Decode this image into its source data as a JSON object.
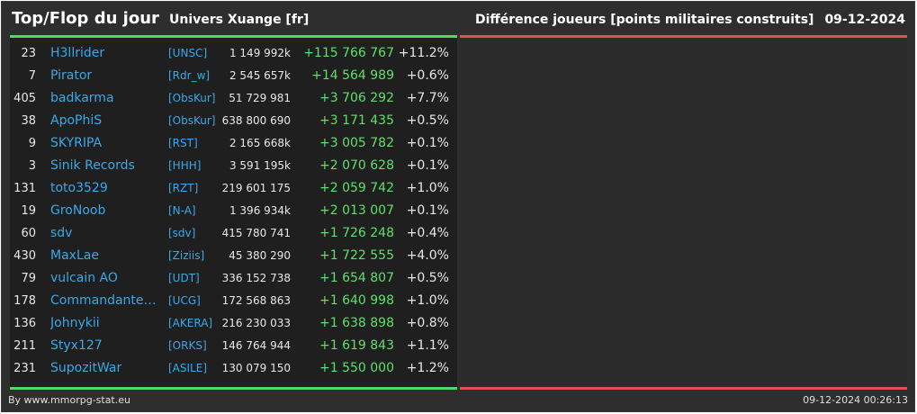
{
  "header": {
    "title": "Top/Flop du jour",
    "universe": "Univers Xuange [fr]",
    "metric": "Différence joueurs [points militaires construits]",
    "date": "09-12-2024"
  },
  "rows": [
    {
      "rank": "23",
      "name": "H3llrider",
      "alliance": "[UNSC]",
      "points": "1 149 992k",
      "diff": "+115 766 767",
      "pct": "+11.2%"
    },
    {
      "rank": "7",
      "name": "Pirator",
      "alliance": "[Rdr_w]",
      "points": "2 545 657k",
      "diff": "+14 564 989",
      "pct": "+0.6%"
    },
    {
      "rank": "405",
      "name": "badkarma",
      "alliance": "[ObsKur]",
      "points": "51 729 981",
      "diff": "+3 706 292",
      "pct": "+7.7%"
    },
    {
      "rank": "38",
      "name": "ApoPhiS",
      "alliance": "[ObsKur]",
      "points": "638 800 690",
      "diff": "+3 171 435",
      "pct": "+0.5%"
    },
    {
      "rank": "9",
      "name": "SKYRIPA",
      "alliance": "[RST]",
      "points": "2 165 668k",
      "diff": "+3 005 782",
      "pct": "+0.1%"
    },
    {
      "rank": "3",
      "name": "Sinik Records",
      "alliance": "[HHH]",
      "points": "3 591 195k",
      "diff": "+2 070 628",
      "pct": "+0.1%"
    },
    {
      "rank": "131",
      "name": "toto3529",
      "alliance": "[RZT]",
      "points": "219 601 175",
      "diff": "+2 059 742",
      "pct": "+1.0%"
    },
    {
      "rank": "19",
      "name": "GroNoob",
      "alliance": "[N-A]",
      "points": "1 396 934k",
      "diff": "+2 013 007",
      "pct": "+0.1%"
    },
    {
      "rank": "60",
      "name": "sdv",
      "alliance": "[sdv]",
      "points": "415 780 741",
      "diff": "+1 726 248",
      "pct": "+0.4%"
    },
    {
      "rank": "430",
      "name": "MaxLae",
      "alliance": "[Ziziis]",
      "points": "45 380 290",
      "diff": "+1 722 555",
      "pct": "+4.0%"
    },
    {
      "rank": "79",
      "name": "vulcain AO",
      "alliance": "[UDT]",
      "points": "336 152 738",
      "diff": "+1 654 807",
      "pct": "+0.5%"
    },
    {
      "rank": "178",
      "name": "Commandante ...",
      "alliance": "[UCG]",
      "points": "172 568 863",
      "diff": "+1 640 998",
      "pct": "+1.0%"
    },
    {
      "rank": "136",
      "name": "Johnykii",
      "alliance": "[AKERA]",
      "points": "216 230 033",
      "diff": "+1 638 898",
      "pct": "+0.8%"
    },
    {
      "rank": "211",
      "name": "Styx127",
      "alliance": "[ORKS]",
      "points": "146 764 944",
      "diff": "+1 619 843",
      "pct": "+1.1%"
    },
    {
      "rank": "231",
      "name": "SupozitWar",
      "alliance": "[ASILE]",
      "points": "130 079 150",
      "diff": "+1 550 000",
      "pct": "+1.2%"
    }
  ],
  "footer": {
    "credit": "By www.mmorpg-stat.eu",
    "timestamp": "09-12-2024 00:26:13"
  },
  "colors": {
    "top_accent": "#4cd964",
    "flop_accent": "#e05050",
    "link": "#3aa9e8",
    "positive": "#5ee06a"
  }
}
